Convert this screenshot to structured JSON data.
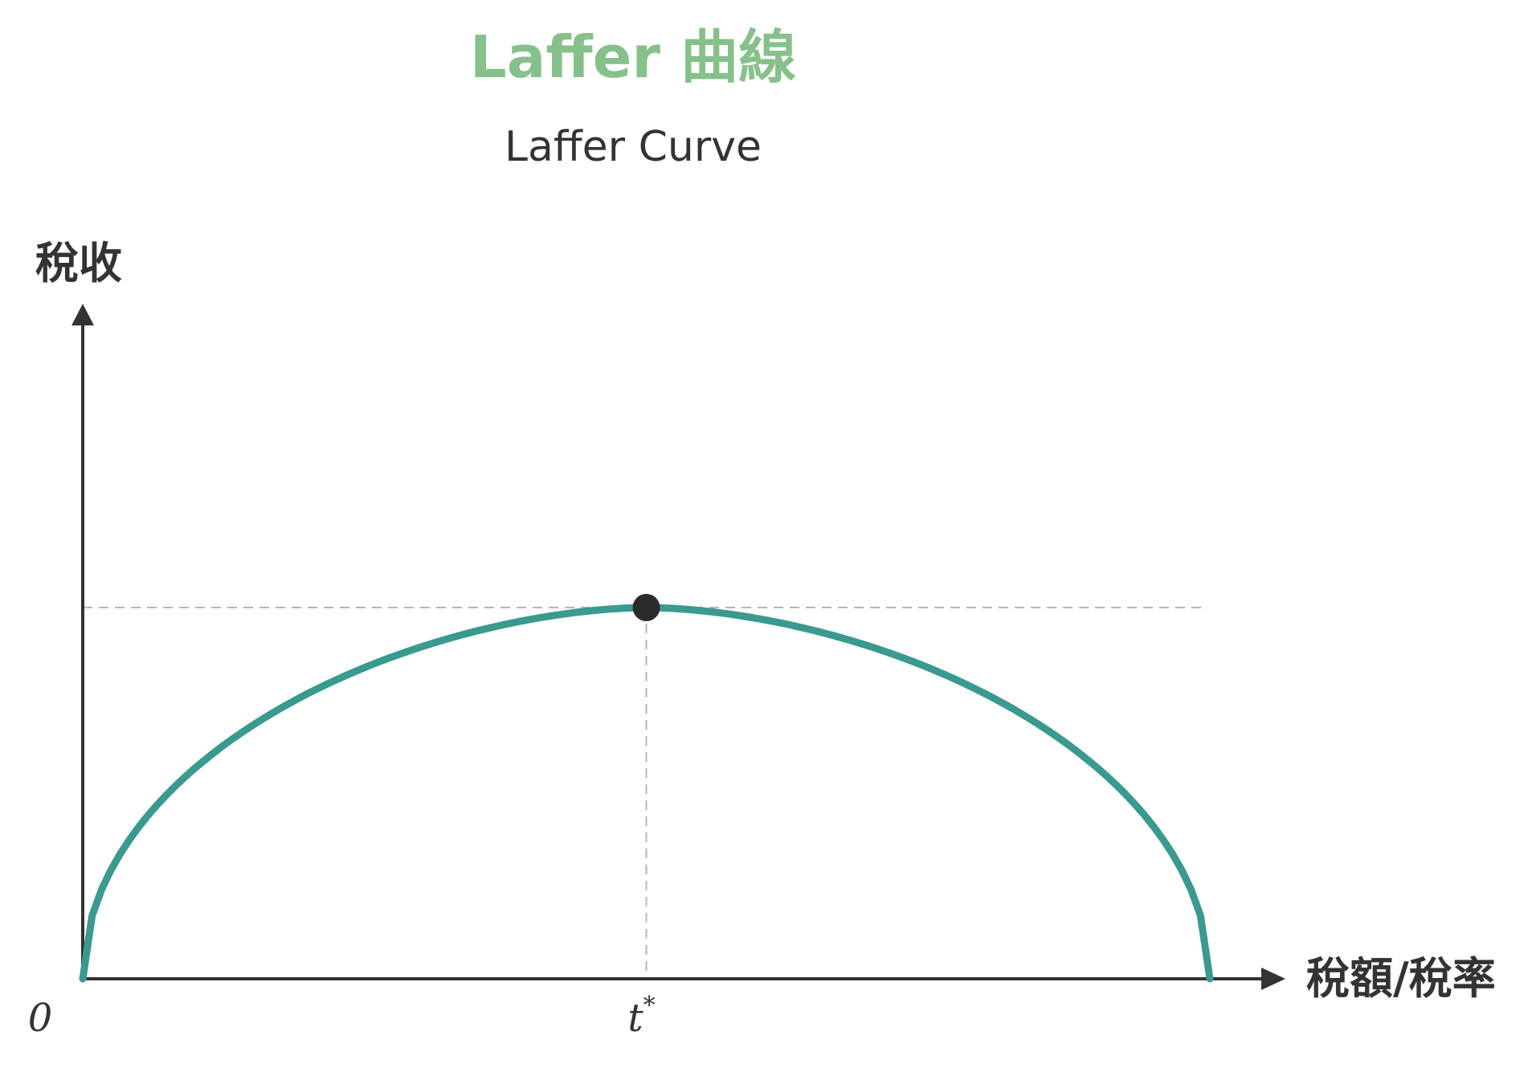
{
  "chart_data": {
    "type": "line",
    "title": "Laffer 曲線",
    "subtitle": "Laffer Curve",
    "xlabel": "稅額/稅率",
    "ylabel": "稅收",
    "origin_label": "0",
    "peak_label_base": "t",
    "peak_label_sup": "*",
    "xlim": [
      0,
      1
    ],
    "ylim": [
      0,
      1
    ],
    "grid": false,
    "series": [
      {
        "x": [
          0,
          0.5,
          1
        ],
        "values": [
          0,
          1,
          0
        ],
        "shape": "concave-arc"
      }
    ],
    "peak": {
      "x": 0.5,
      "y": 1
    },
    "colors": {
      "title": "#86c08a",
      "text": "#333333",
      "curve": "#3a9a8f",
      "axis": "#333333",
      "guide": "#b5b5b5",
      "peak_marker": "#2b2b2b"
    }
  }
}
